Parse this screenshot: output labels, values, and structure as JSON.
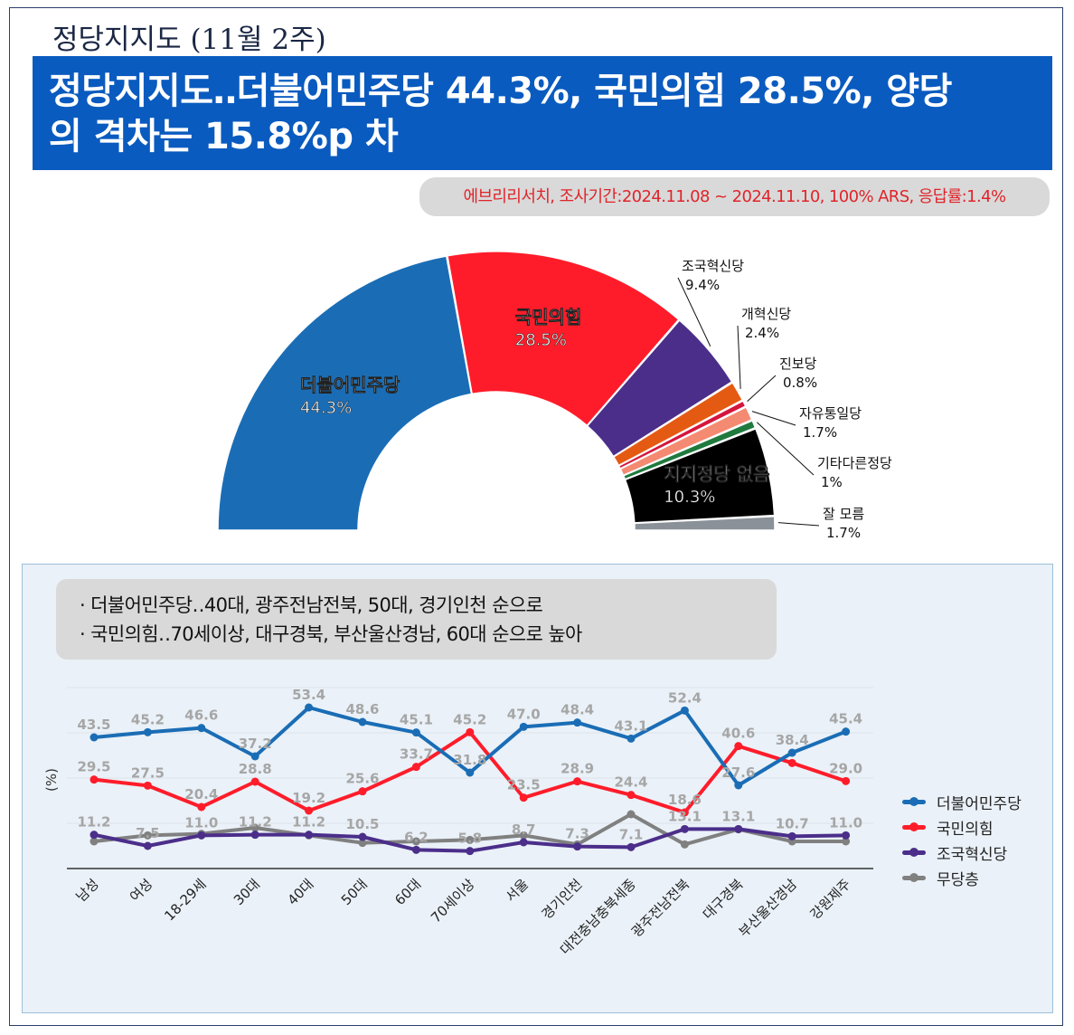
{
  "page": {
    "top_title": "정당지지도 (11월 2주)",
    "headline_line1": "정당지지도‥더불어민주당 44.3%, 국민의힘 28.5%, 양당",
    "headline_line2": "의 격차는 15.8%p 차",
    "source": "에브리리서치, 조사기간:2024.11.08 ~ 2024.11.10, 100% ARS, 응답률:1.4%",
    "summary_line1": "· 더불어민주당‥40대, 광주전남전북, 50대, 경기인천 순으로",
    "summary_line2": "· 국민의힘‥70세이상, 대구경북, 부산울산경남, 60대 순으로 높아"
  },
  "chart_data": [
    {
      "type": "pie",
      "subtype": "semi-donut",
      "title": "정당지지도",
      "slices": [
        {
          "label": "더불어민주당",
          "value": 44.3,
          "value_label": "44.3%",
          "color": "#1a6db5"
        },
        {
          "label": "국민의힘",
          "value": 28.5,
          "value_label": "28.5%",
          "color": "#ff1c2a"
        },
        {
          "label": "조국혁신당",
          "value": 9.4,
          "value_label": "9.4%",
          "color": "#4b2e8a"
        },
        {
          "label": "개혁신당",
          "value": 2.4,
          "value_label": "2.4%",
          "color": "#e55a12"
        },
        {
          "label": "진보당",
          "value": 0.8,
          "value_label": "0.8%",
          "color": "#d6153d"
        },
        {
          "label": "자유통일당",
          "value": 1.7,
          "value_label": "1.7%",
          "color": "#f48a72"
        },
        {
          "label": "기타다른정당",
          "value": 1,
          "value_label": "1%",
          "color": "#1f7a3e"
        },
        {
          "label": "지지정당 없음",
          "value": 10.3,
          "value_label": "10.3%",
          "color": "#000000"
        },
        {
          "label": "잘 모름",
          "value": 1.7,
          "value_label": "1.7%",
          "color": "#8a9198"
        }
      ]
    },
    {
      "type": "line",
      "ylabel": "(%)",
      "ylim": [
        0,
        60
      ],
      "categories": [
        "남성",
        "여성",
        "18-29세",
        "30대",
        "40대",
        "50대",
        "60대",
        "70세이상",
        "서울",
        "경기인천",
        "대전충남충북세종",
        "광주전남전북",
        "대구경북",
        "부산울산경남",
        "강원제주"
      ],
      "series": [
        {
          "name": "더불어민주당",
          "color": "#1a6db5",
          "values": [
            43.5,
            45.2,
            46.6,
            37.2,
            53.4,
            48.6,
            45.1,
            31.8,
            47.0,
            48.4,
            43.1,
            52.4,
            27.6,
            38.4,
            45.4
          ],
          "labels": [
            "43.5",
            "45.2",
            "46.6",
            "37.2",
            "53.4",
            "48.6",
            "45.1",
            "31.8",
            "47.0",
            "48.4",
            "43.1",
            "52.4",
            "27.6",
            "38.4",
            "45.4"
          ]
        },
        {
          "name": "국민의힘",
          "color": "#ff1c2a",
          "values": [
            29.5,
            27.5,
            20.4,
            28.8,
            19.2,
            25.6,
            33.7,
            45.2,
            23.5,
            28.9,
            24.4,
            18.6,
            40.6,
            35.0,
            29.0
          ],
          "labels": [
            "29.5",
            "27.5",
            "20.4",
            "28.8",
            "19.2",
            "25.6",
            "33.7",
            "45.2",
            "23.5",
            "28.9",
            "24.4",
            "18.6",
            "40.6",
            "",
            "29.0"
          ]
        },
        {
          "name": "조국혁신당",
          "color": "#4b2e8a",
          "values": [
            11.2,
            7.5,
            11.0,
            11.2,
            11.2,
            10.5,
            6.2,
            5.8,
            8.7,
            7.3,
            7.1,
            13.1,
            13.1,
            10.7,
            11.0
          ],
          "labels": [
            "11.2",
            "7.5",
            "11.0",
            "11.2",
            "11.2",
            "10.5",
            "6.2",
            "5.8",
            "8.7",
            "7.3",
            "7.1",
            "13.1",
            "13.1",
            "10.7",
            "11.0"
          ]
        },
        {
          "name": "무당층",
          "color": "#808080",
          "values": [
            9.0,
            11.0,
            11.5,
            13.5,
            11.0,
            8.5,
            9.0,
            9.5,
            11.0,
            8.0,
            18.0,
            8.0,
            13.0,
            9.0,
            9.0
          ],
          "labels": [
            "",
            "",
            "",
            "",
            "",
            "",
            "",
            "",
            "",
            "",
            "",
            "",
            "",
            "",
            ""
          ]
        }
      ]
    }
  ]
}
